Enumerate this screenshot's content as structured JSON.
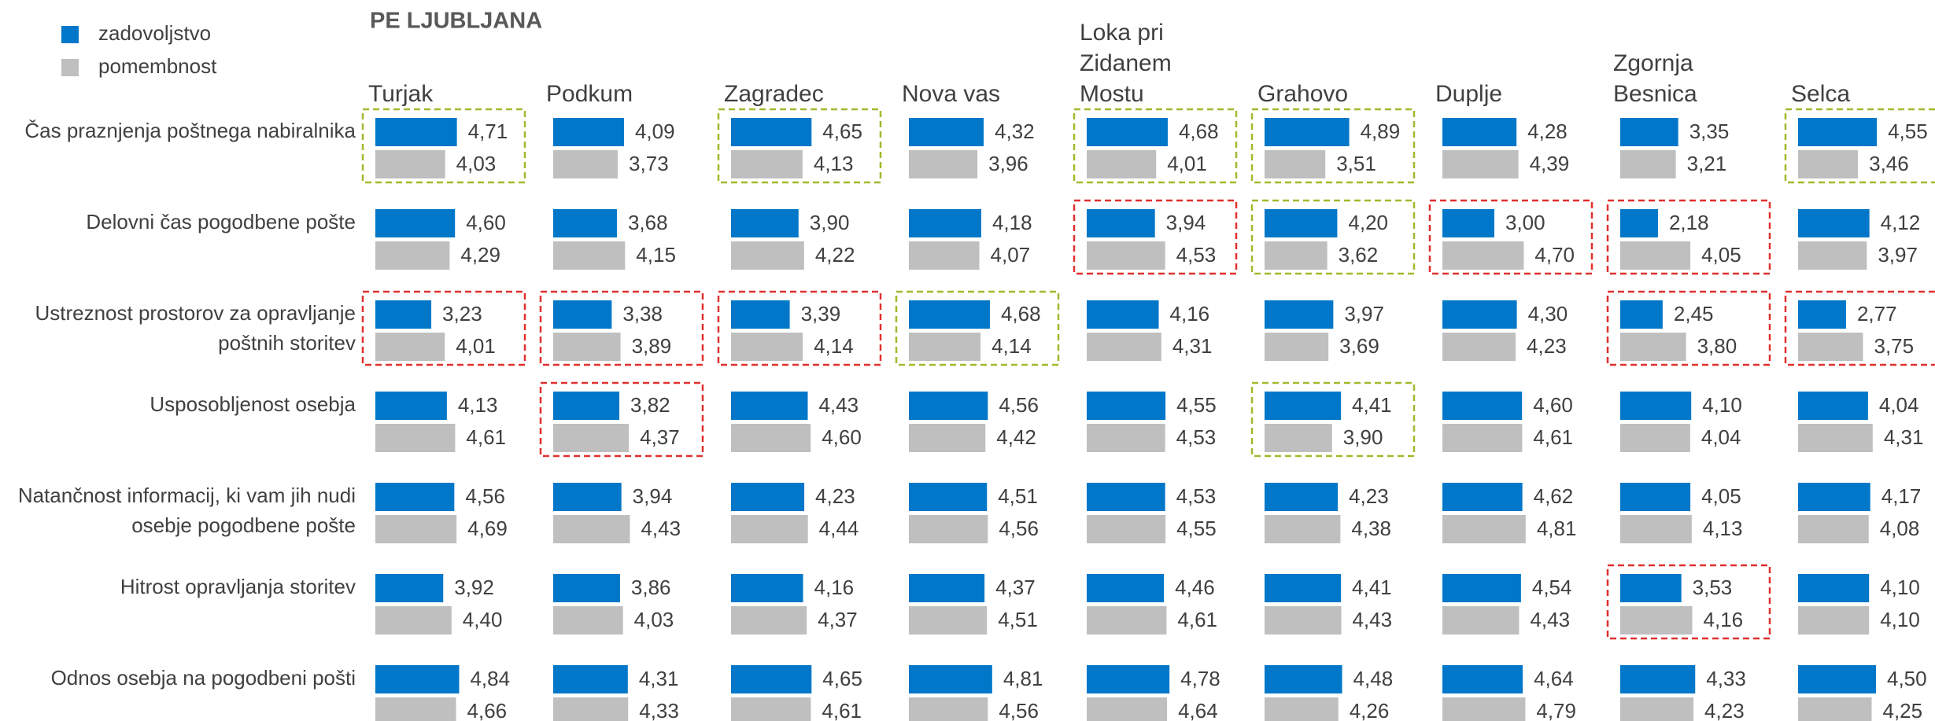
{
  "chart_data": {
    "type": "bar",
    "title": "PE LJUBLJANA",
    "xlim": [
      0,
      5
    ],
    "series": [
      {
        "name": "zadovoljstvo",
        "color": "#0077c8"
      },
      {
        "name": "pomembnost",
        "color": "#bfbfbf"
      }
    ],
    "highlight_colors": {
      "good": "#a5b82c",
      "bad": "#e0302f"
    },
    "categories": [
      [
        "Čas praznjenja poštnega nabiralnika"
      ],
      [
        "Delovni čas pogodbene pošte"
      ],
      [
        "Ustreznost prostorov za opravljanje",
        "poštnih storitev"
      ],
      [
        "Usposobljenost osebja"
      ],
      [
        "Natančnost informacij, ki vam jih nudi",
        "osebje pogodbene pošte"
      ],
      [
        "Hitrost opravljanja storitev"
      ],
      [
        "Odnos osebja na pogodbeni pošti"
      ]
    ],
    "panels": [
      {
        "title": [
          "Turjak"
        ],
        "good": [
          0
        ],
        "bad": [
          2
        ],
        "series": [
          {
            "values": [
              4.71,
              4.6,
              3.23,
              4.13,
              4.56,
              3.92,
              4.84
            ],
            "value_labels": [
              "4,71",
              "4,60",
              "3,23",
              "4,13",
              "4,56",
              "3,92",
              "4,84"
            ]
          },
          {
            "values": [
              4.03,
              4.29,
              4.01,
              4.61,
              4.69,
              4.4,
              4.66
            ],
            "value_labels": [
              "4,03",
              "4,29",
              "4,01",
              "4,61",
              "4,69",
              "4,40",
              "4,66"
            ]
          }
        ]
      },
      {
        "title": [
          "Podkum"
        ],
        "good": [],
        "bad": [
          2,
          3
        ],
        "series": [
          {
            "values": [
              4.09,
              3.68,
              3.38,
              3.82,
              3.94,
              3.86,
              4.31
            ],
            "value_labels": [
              "4,09",
              "3,68",
              "3,38",
              "3,82",
              "3,94",
              "3,86",
              "4,31"
            ]
          },
          {
            "values": [
              3.73,
              4.15,
              3.89,
              4.37,
              4.43,
              4.03,
              4.33
            ],
            "value_labels": [
              "3,73",
              "4,15",
              "3,89",
              "4,37",
              "4,43",
              "4,03",
              "4,33"
            ]
          }
        ]
      },
      {
        "title": [
          "Zagradec"
        ],
        "good": [
          0
        ],
        "bad": [
          2
        ],
        "series": [
          {
            "values": [
              4.65,
              3.9,
              3.39,
              4.43,
              4.23,
              4.16,
              4.65
            ],
            "value_labels": [
              "4,65",
              "3,90",
              "3,39",
              "4,43",
              "4,23",
              "4,16",
              "4,65"
            ]
          },
          {
            "values": [
              4.13,
              4.22,
              4.14,
              4.6,
              4.44,
              4.37,
              4.61
            ],
            "value_labels": [
              "4,13",
              "4,22",
              "4,14",
              "4,60",
              "4,44",
              "4,37",
              "4,61"
            ]
          }
        ]
      },
      {
        "title": [
          "Nova vas"
        ],
        "good": [
          2
        ],
        "bad": [],
        "series": [
          {
            "values": [
              4.32,
              4.18,
              4.68,
              4.56,
              4.51,
              4.37,
              4.81
            ],
            "value_labels": [
              "4,32",
              "4,18",
              "4,68",
              "4,56",
              "4,51",
              "4,37",
              "4,81"
            ]
          },
          {
            "values": [
              3.96,
              4.07,
              4.14,
              4.42,
              4.56,
              4.51,
              4.56
            ],
            "value_labels": [
              "3,96",
              "4,07",
              "4,14",
              "4,42",
              "4,56",
              "4,51",
              "4,56"
            ]
          }
        ]
      },
      {
        "title": [
          "Loka pri",
          "Zidanem",
          "Mostu"
        ],
        "good": [
          0
        ],
        "bad": [
          1
        ],
        "series": [
          {
            "values": [
              4.68,
              3.94,
              4.16,
              4.55,
              4.53,
              4.46,
              4.78
            ],
            "value_labels": [
              "4,68",
              "3,94",
              "4,16",
              "4,55",
              "4,53",
              "4,46",
              "4,78"
            ]
          },
          {
            "values": [
              4.01,
              4.53,
              4.31,
              4.53,
              4.55,
              4.61,
              4.64
            ],
            "value_labels": [
              "4,01",
              "4,53",
              "4,31",
              "4,53",
              "4,55",
              "4,61",
              "4,64"
            ]
          }
        ]
      },
      {
        "title": [
          "Grahovo"
        ],
        "good": [
          0,
          1,
          3
        ],
        "bad": [],
        "series": [
          {
            "values": [
              4.89,
              4.2,
              3.97,
              4.41,
              4.23,
              4.41,
              4.48
            ],
            "value_labels": [
              "4,89",
              "4,20",
              "3,97",
              "4,41",
              "4,23",
              "4,41",
              "4,48"
            ]
          },
          {
            "values": [
              3.51,
              3.62,
              3.69,
              3.9,
              4.38,
              4.43,
              4.26
            ],
            "value_labels": [
              "3,51",
              "3,62",
              "3,69",
              "3,90",
              "4,38",
              "4,43",
              "4,26"
            ]
          }
        ]
      },
      {
        "title": [
          "Duplje"
        ],
        "good": [],
        "bad": [
          1
        ],
        "series": [
          {
            "values": [
              4.28,
              3.0,
              4.3,
              4.6,
              4.62,
              4.54,
              4.64
            ],
            "value_labels": [
              "4,28",
              "3,00",
              "4,30",
              "4,60",
              "4,62",
              "4,54",
              "4,64"
            ]
          },
          {
            "values": [
              4.39,
              4.7,
              4.23,
              4.61,
              4.81,
              4.43,
              4.79
            ],
            "value_labels": [
              "4,39",
              "4,70",
              "4,23",
              "4,61",
              "4,81",
              "4,43",
              "4,79"
            ]
          }
        ]
      },
      {
        "title": [
          "Zgornja",
          "Besnica"
        ],
        "good": [],
        "bad": [
          1,
          2,
          5
        ],
        "series": [
          {
            "values": [
              3.35,
              2.18,
              2.45,
              4.1,
              4.05,
              3.53,
              4.33
            ],
            "value_labels": [
              "3,35",
              "2,18",
              "2,45",
              "4,10",
              "4,05",
              "3,53",
              "4,33"
            ]
          },
          {
            "values": [
              3.21,
              4.05,
              3.8,
              4.04,
              4.13,
              4.16,
              4.23
            ],
            "value_labels": [
              "3,21",
              "4,05",
              "3,80",
              "4,04",
              "4,13",
              "4,16",
              "4,23"
            ]
          }
        ]
      },
      {
        "title": [
          "Selca"
        ],
        "good": [
          0
        ],
        "bad": [
          2
        ],
        "series": [
          {
            "values": [
              4.55,
              4.12,
              2.77,
              4.04,
              4.17,
              4.1,
              4.5
            ],
            "value_labels": [
              "4,55",
              "4,12",
              "2,77",
              "4,04",
              "4,17",
              "4,10",
              "4,50"
            ]
          },
          {
            "values": [
              3.46,
              3.97,
              3.75,
              4.31,
              4.08,
              4.1,
              4.25
            ],
            "value_labels": [
              "3,46",
              "3,97",
              "3,75",
              "4,31",
              "4,08",
              "4,10",
              "4,25"
            ]
          }
        ]
      }
    ]
  }
}
